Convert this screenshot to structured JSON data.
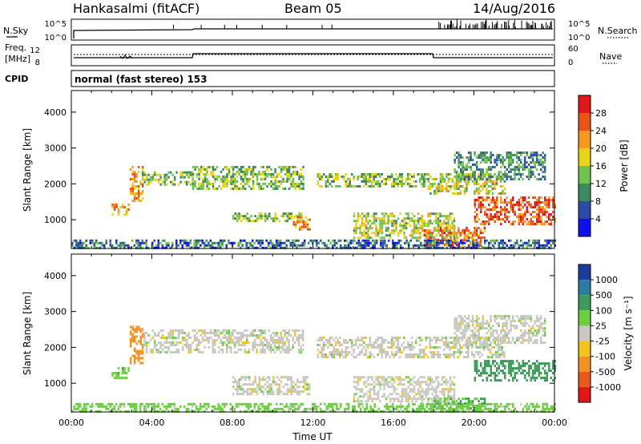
{
  "header": {
    "station": "Hankasalmi (fitACF)",
    "beam": "Beam 05",
    "date": "14/Aug/2016"
  },
  "top_panels": {
    "nsky_label": "N.Sky",
    "nsearch_label": "N.Search",
    "noise_ticks": [
      "10^5",
      "10^0"
    ],
    "freq_label_1": "Freq.",
    "freq_label_2": "[MHz]",
    "freq_ticks": [
      "12",
      "8"
    ],
    "nave_label": "Nave",
    "nave_ticks": [
      "60",
      "0"
    ],
    "cpid_label": "CPID",
    "cpid_text": "normal (fast stereo) 153"
  },
  "power_colorbar": {
    "label": "Power [dB]",
    "ticks": [
      "4",
      "8",
      "12",
      "16",
      "20",
      "24",
      "28"
    ],
    "colors": [
      "#1010ee",
      "#2a4ca8",
      "#3d8a60",
      "#6fc24a",
      "#e8d21a",
      "#f59a1e",
      "#e85418",
      "#e11818"
    ]
  },
  "velocity_colorbar": {
    "label": "Velocity [m s⁻¹]",
    "ticks": [
      "1000",
      "500",
      "100",
      "25",
      "-25",
      "-100",
      "-500",
      "-1000"
    ],
    "colors": [
      "#1a3ea0",
      "#2a7ca2",
      "#3d9c5a",
      "#6ccf3f",
      "#c8c8c0",
      "#f2c51d",
      "#f59022",
      "#e85a1c",
      "#e11818"
    ]
  },
  "chart_data": [
    {
      "type": "heatmap",
      "name": "",
      "ylabel": "Slant Range [km]",
      "xlabel": "",
      "x_unit": "hours UT",
      "xlim": [
        0,
        24
      ],
      "ylim": [
        200,
        4600
      ],
      "yticks": [
        "1000",
        "2000",
        "3000",
        "4000"
      ],
      "colorbar_ticks_db": [
        4,
        8,
        12,
        16,
        20,
        24,
        28
      ],
      "echo_regions": [
        {
          "t_start": 2.9,
          "t_end": 3.5,
          "r_start": 1550,
          "r_end": 2500,
          "power_db": 22
        },
        {
          "t_start": 3.5,
          "t_end": 6.0,
          "r_start": 1950,
          "r_end": 2350,
          "power_db": 14
        },
        {
          "t_start": 6.0,
          "t_end": 11.5,
          "r_start": 1850,
          "r_end": 2500,
          "power_db": 14
        },
        {
          "t_start": 12.2,
          "t_end": 17.5,
          "r_start": 1900,
          "r_end": 2300,
          "power_db": 14
        },
        {
          "t_start": 17.5,
          "t_end": 21.5,
          "r_start": 1700,
          "r_end": 2300,
          "power_db": 16
        },
        {
          "t_start": 19.0,
          "t_end": 23.5,
          "r_start": 2100,
          "r_end": 2900,
          "power_db": 10
        },
        {
          "t_start": 2.0,
          "t_end": 2.8,
          "r_start": 1150,
          "r_end": 1450,
          "power_db": 22
        },
        {
          "t_start": 8.0,
          "t_end": 11.5,
          "r_start": 950,
          "r_end": 1200,
          "power_db": 14
        },
        {
          "t_start": 11.0,
          "t_end": 11.8,
          "r_start": 700,
          "r_end": 1100,
          "power_db": 22
        },
        {
          "t_start": 14.0,
          "t_end": 19.0,
          "r_start": 500,
          "r_end": 1200,
          "power_db": 16
        },
        {
          "t_start": 17.5,
          "t_end": 20.5,
          "r_start": 250,
          "r_end": 800,
          "power_db": 24
        },
        {
          "t_start": 20.0,
          "t_end": 24.0,
          "r_start": 900,
          "r_end": 1650,
          "power_db": 26
        },
        {
          "t_start": 0.0,
          "t_end": 24.0,
          "r_start": 200,
          "r_end": 450,
          "power_db": 8
        }
      ]
    },
    {
      "type": "heatmap",
      "name": "",
      "ylabel": "Slant Range [km]",
      "xlabel": "Time UT",
      "x_unit": "hours UT",
      "xlim": [
        0,
        24
      ],
      "ylim": [
        200,
        4600
      ],
      "yticks": [
        "1000",
        "2000",
        "3000",
        "4000"
      ],
      "xticks": [
        "00:00",
        "04:00",
        "08:00",
        "12:00",
        "16:00",
        "20:00",
        "00:00"
      ],
      "colorbar_ticks_ms": [
        1000,
        500,
        100,
        25,
        -25,
        -100,
        -500,
        -1000
      ],
      "echo_regions": [
        {
          "t_start": 2.9,
          "t_end": 3.5,
          "r_start": 1550,
          "r_end": 2600,
          "velocity_ms": -300
        },
        {
          "t_start": 2.0,
          "t_end": 2.8,
          "r_start": 1150,
          "r_end": 1450,
          "velocity_ms": 80
        },
        {
          "t_start": 3.5,
          "t_end": 11.5,
          "r_start": 1850,
          "r_end": 2500,
          "velocity_ms": 0
        },
        {
          "t_start": 12.2,
          "t_end": 21.5,
          "r_start": 1700,
          "r_end": 2300,
          "velocity_ms": 0
        },
        {
          "t_start": 19.0,
          "t_end": 23.5,
          "r_start": 2100,
          "r_end": 2900,
          "velocity_ms": 0
        },
        {
          "t_start": 8.0,
          "t_end": 11.8,
          "r_start": 700,
          "r_end": 1200,
          "velocity_ms": 0
        },
        {
          "t_start": 14.0,
          "t_end": 19.0,
          "r_start": 500,
          "r_end": 1200,
          "velocity_ms": 0
        },
        {
          "t_start": 20.0,
          "t_end": 24.0,
          "r_start": 1050,
          "r_end": 1650,
          "velocity_ms": 300
        },
        {
          "t_start": 18.0,
          "t_end": 20.5,
          "r_start": 250,
          "r_end": 600,
          "velocity_ms": 100
        },
        {
          "t_start": 0.0,
          "t_end": 24.0,
          "r_start": 200,
          "r_end": 450,
          "velocity_ms": 50
        }
      ]
    }
  ]
}
